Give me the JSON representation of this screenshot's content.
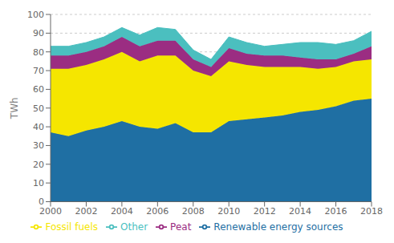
{
  "chart_data": {
    "type": "area",
    "x": [
      2000,
      2001,
      2002,
      2003,
      2004,
      2005,
      2006,
      2007,
      2008,
      2009,
      2010,
      2011,
      2012,
      2013,
      2014,
      2015,
      2016,
      2017,
      2018
    ],
    "series": [
      {
        "name": "Renewable energy sources",
        "color": "#1f6fa3",
        "values": [
          37,
          35,
          38,
          40,
          43,
          40,
          39,
          42,
          37,
          37,
          43,
          44,
          45,
          46,
          48,
          49,
          51,
          54,
          55
        ]
      },
      {
        "name": "Fossil fuels",
        "color": "#f5e600",
        "values": [
          34,
          36,
          35,
          36,
          37,
          35,
          39,
          36,
          33,
          30,
          32,
          29,
          27,
          26,
          24,
          22,
          21,
          21,
          21
        ]
      },
      {
        "name": "Peat",
        "color": "#9b2d82",
        "values": [
          7,
          7,
          7,
          7,
          8,
          8,
          8,
          8,
          6,
          5,
          7,
          6,
          6,
          6,
          5,
          5,
          4,
          4,
          7
        ]
      },
      {
        "name": "Other",
        "color": "#4bbfbf",
        "values": [
          5,
          5,
          5,
          5,
          5,
          6,
          7,
          6,
          5,
          4,
          6,
          6,
          5,
          6,
          8,
          9,
          8,
          7,
          8
        ]
      }
    ],
    "ylabel": "TWh",
    "xlim": [
      2000,
      2018
    ],
    "xticks": [
      2000,
      2002,
      2004,
      2006,
      2008,
      2010,
      2012,
      2014,
      2016,
      2018
    ],
    "ylim": [
      0,
      100
    ],
    "yticks": [
      0,
      10,
      20,
      30,
      40,
      50,
      60,
      70,
      80,
      90,
      100
    ],
    "grid": true,
    "stacked": true,
    "legend": "bottom"
  }
}
